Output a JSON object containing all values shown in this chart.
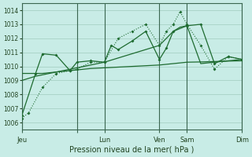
{
  "bg_color": "#c8ece6",
  "grid_color": "#a0ccbf",
  "line_color": "#1e6b30",
  "ylabel": "Pression niveau de la mer( hPa )",
  "ylim": [
    1005.5,
    1014.5
  ],
  "yticks": [
    1006,
    1007,
    1008,
    1009,
    1010,
    1011,
    1012,
    1013,
    1014
  ],
  "xlim": [
    0,
    96
  ],
  "xtick_positions": [
    0,
    24,
    36,
    60,
    72,
    96
  ],
  "xtick_labels": [
    "Jeu",
    "",
    "Lun",
    "Ven",
    "Sam",
    "Dim"
  ],
  "vline_positions": [
    0,
    24,
    36,
    60,
    72,
    96
  ],
  "series1_x": [
    0,
    3,
    9,
    15,
    21,
    24,
    30,
    36,
    42,
    48,
    54,
    60,
    63,
    66,
    69,
    72,
    78,
    84,
    90,
    96
  ],
  "series1_y": [
    1006.3,
    1006.7,
    1008.5,
    1009.5,
    1009.7,
    1009.8,
    1010.3,
    1010.3,
    1012.0,
    1012.5,
    1013.0,
    1011.5,
    1012.5,
    1013.0,
    1013.9,
    1013.0,
    1011.5,
    1009.8,
    1010.7,
    1010.5
  ],
  "series2_x": [
    0,
    6,
    9,
    15,
    21,
    24,
    30,
    36,
    42,
    48,
    54,
    60,
    63,
    66,
    69,
    72,
    78,
    84,
    90,
    96
  ],
  "series2_y": [
    1009.5,
    1009.5,
    1009.5,
    1009.6,
    1009.7,
    1009.75,
    1009.85,
    1009.9,
    1009.95,
    1010.0,
    1010.05,
    1010.1,
    1010.15,
    1010.2,
    1010.25,
    1010.3,
    1010.32,
    1010.35,
    1010.38,
    1010.4
  ],
  "series3_x": [
    0,
    6,
    12,
    18,
    24,
    30,
    36,
    42,
    48,
    54,
    60,
    63,
    66,
    69,
    72,
    78,
    84,
    90,
    96
  ],
  "series3_y": [
    1009.0,
    1009.3,
    1009.5,
    1009.7,
    1009.9,
    1010.1,
    1010.3,
    1010.6,
    1010.9,
    1011.2,
    1011.5,
    1012.0,
    1012.5,
    1012.8,
    1012.9,
    1010.2,
    1010.3,
    1010.4,
    1010.5
  ],
  "series4_x": [
    0,
    6,
    9,
    15,
    21,
    24,
    30,
    36,
    39,
    42,
    48,
    54,
    60,
    63,
    66,
    72,
    78,
    84,
    90,
    96
  ],
  "series4_y": [
    1006.5,
    1009.5,
    1010.9,
    1010.8,
    1009.7,
    1010.3,
    1010.4,
    1010.3,
    1011.5,
    1011.2,
    1011.8,
    1012.5,
    1010.5,
    1011.3,
    1012.5,
    1012.9,
    1013.0,
    1010.2,
    1010.7,
    1010.5
  ]
}
